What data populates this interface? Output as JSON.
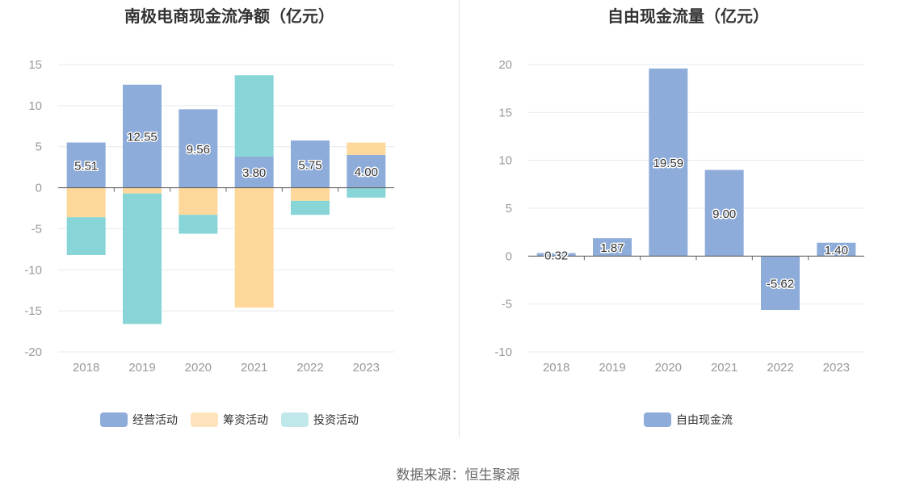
{
  "source_text": "数据来源：恒生聚源",
  "chart_data": [
    {
      "type": "bar",
      "stacked": true,
      "title": "南极电商现金流净额（亿元）",
      "categories": [
        "2018",
        "2019",
        "2020",
        "2021",
        "2022",
        "2023"
      ],
      "ylim": [
        -20,
        15
      ],
      "yticks": [
        15,
        10,
        5,
        0,
        -5,
        -10,
        -15,
        -20
      ],
      "grid": true,
      "legend_position": "bottom",
      "series": [
        {
          "name": "经营活动",
          "color": "#8eacd9",
          "values": [
            5.51,
            12.55,
            9.56,
            3.8,
            5.75,
            4.0
          ],
          "labels": [
            "5.51",
            "12.55",
            "9.56",
            "3.80",
            "5.75",
            "4.00"
          ]
        },
        {
          "name": "筹资活动",
          "color": "#fdd89a",
          "values": [
            -3.6,
            -0.7,
            -3.3,
            -14.6,
            -1.6,
            1.5
          ]
        },
        {
          "name": "投资活动",
          "color": "#88d5d8",
          "values": [
            -4.6,
            -15.9,
            -2.3,
            9.9,
            -1.7,
            -1.2
          ]
        }
      ],
      "legend_colors": [
        "#8eacd9",
        "#fde3bb",
        "#c0e8eb"
      ]
    },
    {
      "type": "bar",
      "title": "自由现金流量（亿元）",
      "categories": [
        "2018",
        "2019",
        "2020",
        "2021",
        "2022",
        "2023"
      ],
      "ylim": [
        -10,
        20
      ],
      "yticks": [
        20,
        15,
        10,
        5,
        0,
        -5,
        -10
      ],
      "grid": true,
      "legend_position": "bottom",
      "series": [
        {
          "name": "自由现金流",
          "color": "#8eacd9",
          "values": [
            0.32,
            1.87,
            19.59,
            9.0,
            -5.62,
            1.4
          ],
          "labels": [
            "0.32",
            "1.87",
            "19.59",
            "9.00",
            "-5.62",
            "1.40"
          ]
        }
      ]
    }
  ]
}
